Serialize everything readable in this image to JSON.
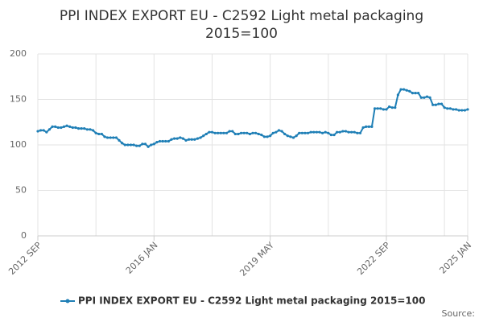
{
  "chart_data": {
    "type": "line",
    "title": [
      "PPI INDEX EXPORT EU - C2592 Light metal packaging",
      "2015=100"
    ],
    "source": "Source:",
    "categories": [
      "2012 SEP",
      null,
      null,
      null,
      null,
      null,
      null,
      null,
      null,
      null,
      null,
      null,
      null,
      null,
      null,
      null,
      null,
      null,
      null,
      null,
      null,
      null,
      null,
      null,
      null,
      null,
      null,
      null,
      null,
      null,
      null,
      null,
      null,
      null,
      null,
      null,
      null,
      null,
      null,
      null,
      "2016 JAN",
      null,
      null,
      null,
      null,
      null,
      null,
      null,
      null,
      null,
      null,
      null,
      null,
      null,
      null,
      null,
      null,
      null,
      null,
      null,
      null,
      null,
      null,
      null,
      null,
      null,
      null,
      null,
      null,
      null,
      null,
      null,
      null,
      null,
      null,
      null,
      null,
      null,
      null,
      null,
      "2019 MAY",
      null,
      null,
      null,
      null,
      null,
      null,
      null,
      null,
      null,
      null,
      null,
      null,
      null,
      null,
      null,
      null,
      null,
      null,
      null,
      null,
      null,
      null,
      null,
      null,
      null,
      null,
      null,
      null,
      null,
      null,
      null,
      null,
      null,
      null,
      null,
      null,
      null,
      null,
      null,
      "2022 SEP",
      null,
      null,
      null,
      null,
      null,
      null,
      null,
      null,
      null,
      null,
      null,
      null,
      null,
      null,
      null,
      null,
      null,
      null,
      null,
      null,
      null,
      null,
      null,
      null,
      null,
      null,
      null,
      "2025 JAN"
    ],
    "series": [
      {
        "name": "PPI INDEX EXPORT EU - C2592 Light metal packaging 2015=100",
        "color": "#1f7fb6",
        "values": [
          115,
          116,
          116,
          114,
          117,
          120,
          120,
          119,
          119,
          120,
          121,
          120,
          119,
          119,
          118,
          118,
          118,
          117,
          117,
          116,
          113,
          112,
          112,
          109,
          108,
          108,
          108,
          108,
          105,
          102,
          100,
          100,
          100,
          100,
          99,
          99,
          101,
          101,
          98,
          100,
          101,
          103,
          104,
          104,
          104,
          104,
          106,
          107,
          107,
          108,
          107,
          105,
          106,
          106,
          106,
          107,
          108,
          110,
          112,
          114,
          114,
          113,
          113,
          113,
          113,
          113,
          115,
          115,
          112,
          112,
          113,
          113,
          113,
          112,
          113,
          113,
          112,
          111,
          109,
          109,
          110,
          113,
          114,
          116,
          115,
          112,
          110,
          109,
          108,
          110,
          113,
          113,
          113,
          113,
          114,
          114,
          114,
          114,
          113,
          114,
          113,
          111,
          111,
          114,
          114,
          115,
          115,
          114,
          114,
          114,
          113,
          113,
          119,
          120,
          120,
          120,
          140,
          140,
          140,
          139,
          139,
          142,
          141,
          141,
          155,
          161,
          161,
          160,
          159,
          157,
          157,
          157,
          152,
          152,
          153,
          152,
          144,
          144,
          145,
          145,
          141,
          140,
          140,
          139,
          139,
          138,
          138,
          138,
          139
        ]
      }
    ],
    "ylim": [
      0,
      200
    ],
    "yticks": [
      0,
      50,
      100,
      150,
      200
    ],
    "grid": true
  }
}
